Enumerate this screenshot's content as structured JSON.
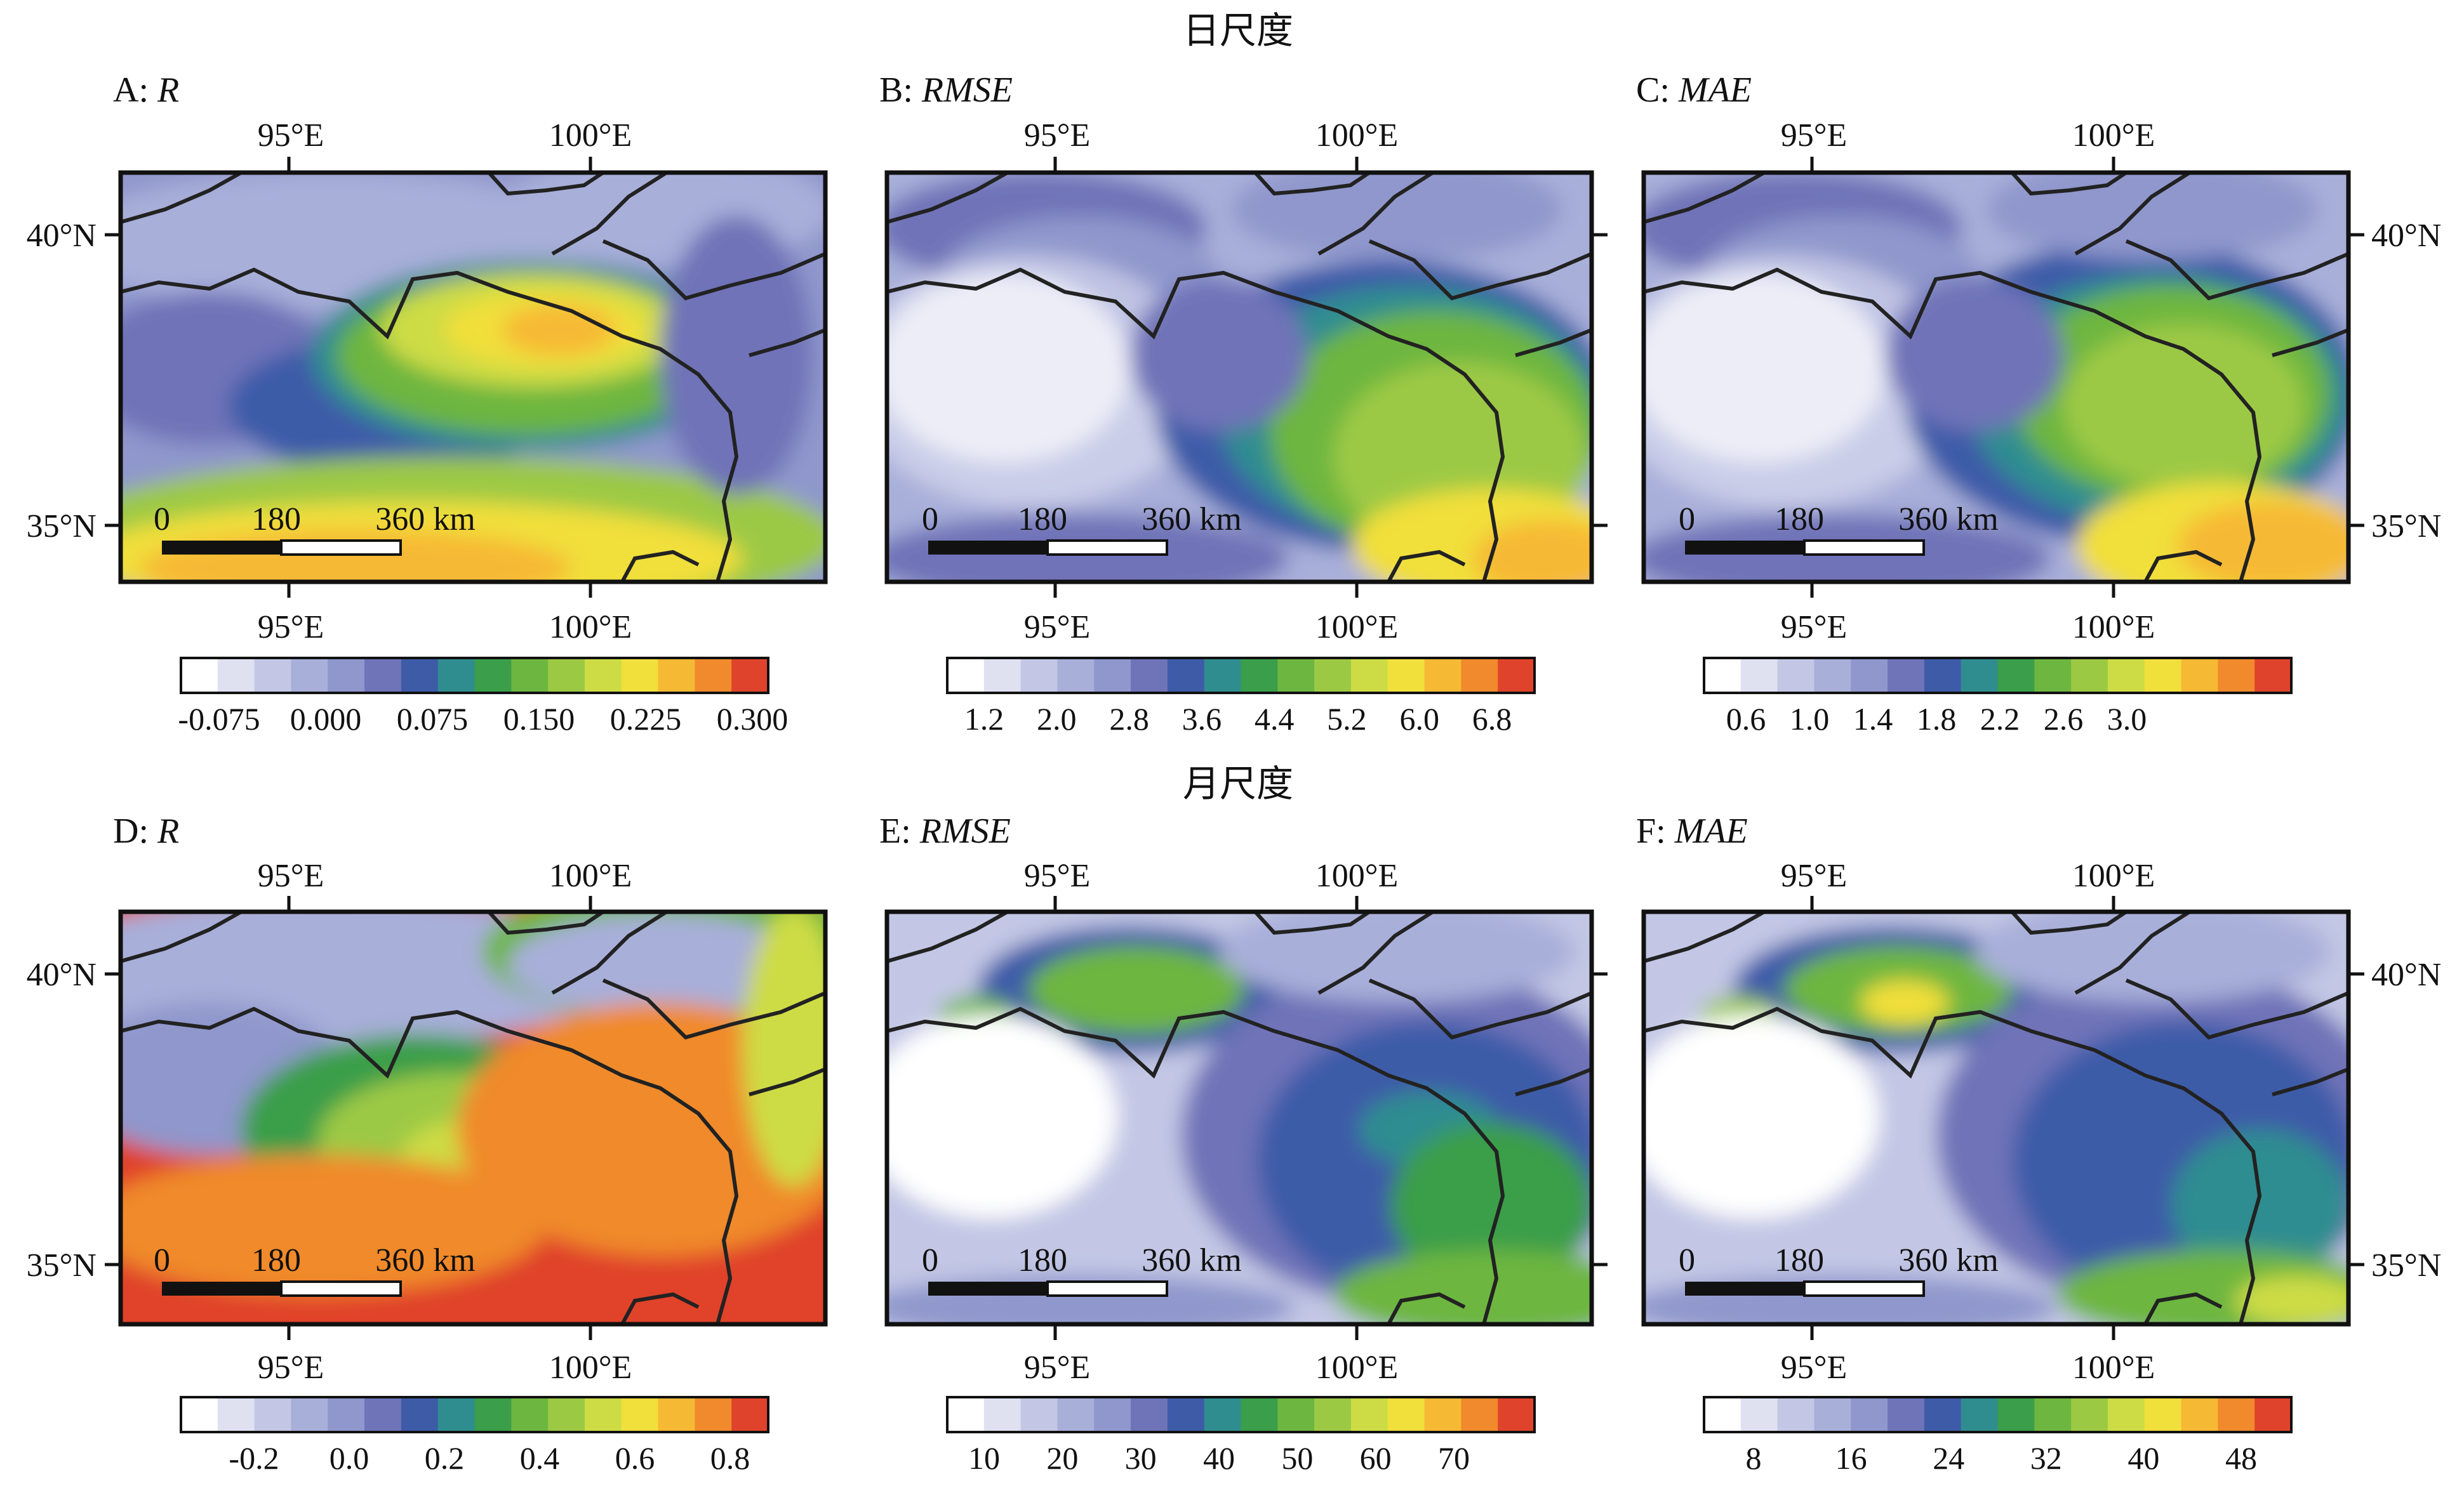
{
  "figure": {
    "rows": [
      {
        "title": "日尺度"
      },
      {
        "title": "月尺度"
      }
    ],
    "panels": [
      {
        "letter": "A:",
        "metric": "R",
        "colorbar": [
          "-0.075",
          "0.000",
          "0.075",
          "0.150",
          "0.225",
          "0.300"
        ]
      },
      {
        "letter": "B:",
        "metric": "RMSE",
        "colorbar": [
          "1.2",
          "2.0",
          "2.8",
          "3.6",
          "4.4",
          "5.2",
          "6.0",
          "6.8"
        ]
      },
      {
        "letter": "C:",
        "metric": "MAE",
        "colorbar": [
          "0.6",
          "1.0",
          "1.4",
          "1.8",
          "2.2",
          "2.6",
          "3.0"
        ]
      },
      {
        "letter": "D:",
        "metric": "R",
        "colorbar": [
          "-0.2",
          "0.0",
          "0.2",
          "0.4",
          "0.6",
          "0.8"
        ]
      },
      {
        "letter": "E:",
        "metric": "RMSE",
        "colorbar": [
          "10",
          "20",
          "30",
          "40",
          "50",
          "60",
          "70"
        ]
      },
      {
        "letter": "F:",
        "metric": "MAE",
        "colorbar": [
          "8",
          "16",
          "24",
          "32",
          "40",
          "48"
        ]
      }
    ],
    "axes": {
      "lon_ticks": [
        "95°E",
        "100°E"
      ],
      "lat_ticks": [
        "40°N",
        "35°N"
      ]
    },
    "scalebar": {
      "labels": [
        "0",
        "180",
        "360 km"
      ]
    },
    "palette": [
      "#ffffff",
      "#dfe1f1",
      "#c3c7e5",
      "#a8afd9",
      "#8f97cc",
      "#6f73b8",
      "#3e5ba8",
      "#2f8d90",
      "#3a9e4a",
      "#6db63f",
      "#9cc944",
      "#cddc44",
      "#f1df3b",
      "#f6b934",
      "#f08a2c",
      "#e0432b"
    ]
  }
}
